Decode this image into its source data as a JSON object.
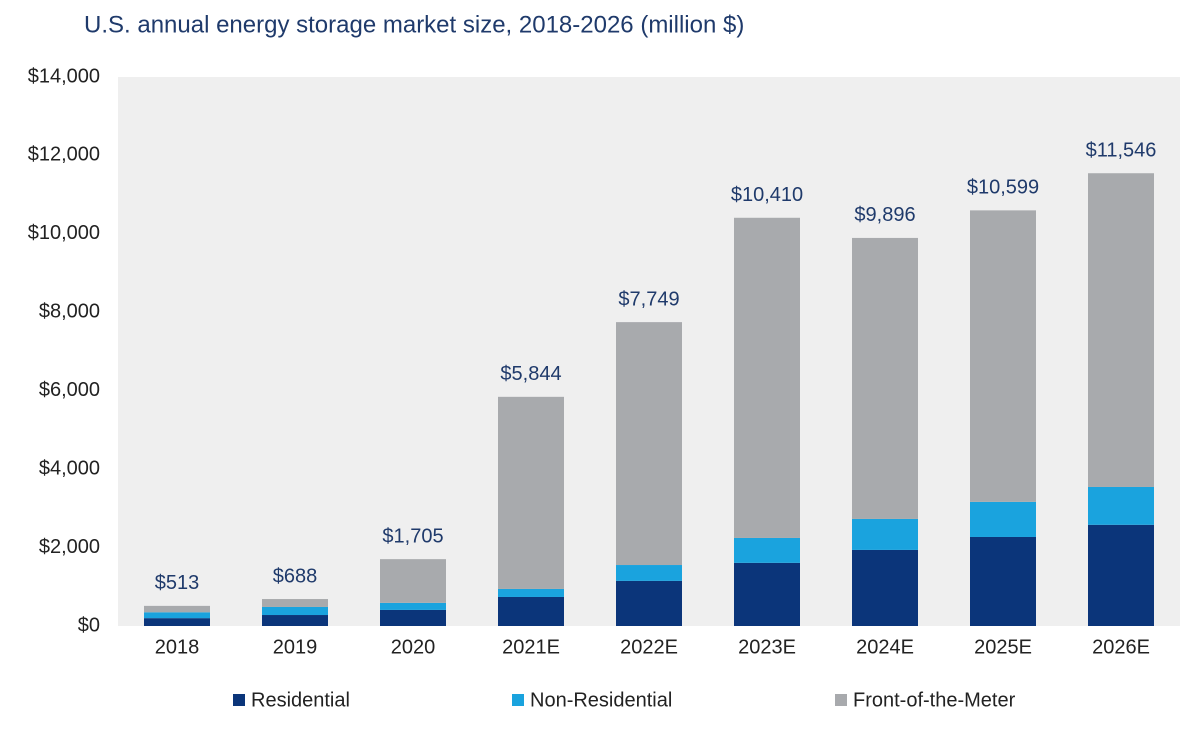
{
  "chart_data": {
    "type": "stacked_bar",
    "title": "U.S. annual energy storage market size, 2018-2026 (million $)",
    "categories": [
      "2018",
      "2019",
      "2020",
      "2021E",
      "2022E",
      "2023E",
      "2024E",
      "2025E",
      "2026E"
    ],
    "series": [
      {
        "name": "Residential",
        "color": "#0b357a",
        "values": [
          200,
          280,
          410,
          740,
          1150,
          1610,
          1940,
          2270,
          2580
        ]
      },
      {
        "name": "Non-Residential",
        "color": "#1aa3de",
        "values": [
          150,
          205,
          180,
          205,
          405,
          635,
          790,
          895,
          965
        ]
      },
      {
        "name": "Front-of-the-Meter",
        "color": "#a8aaad",
        "values": [
          163,
          203,
          1115,
          4899,
          6194,
          8165,
          7166,
          7434,
          8001
        ]
      }
    ],
    "totals": [
      513,
      688,
      1705,
      5844,
      7749,
      10410,
      9896,
      10599,
      11546
    ],
    "total_labels": [
      "$513",
      "$688",
      "$1,705",
      "$5,844",
      "$7,749",
      "$10,410",
      "$9,896",
      "$10,599",
      "$11,546"
    ],
    "ylim": [
      0,
      14000
    ],
    "yticks": [
      {
        "value": 0,
        "label": "$0"
      },
      {
        "value": 2000,
        "label": "$2,000"
      },
      {
        "value": 4000,
        "label": "$4,000"
      },
      {
        "value": 6000,
        "label": "$6,000"
      },
      {
        "value": 8000,
        "label": "$8,000"
      },
      {
        "value": 10000,
        "label": "$10,000"
      },
      {
        "value": 12000,
        "label": "$12,000"
      },
      {
        "value": 14000,
        "label": "$14,000"
      }
    ],
    "legend": "bottom"
  }
}
